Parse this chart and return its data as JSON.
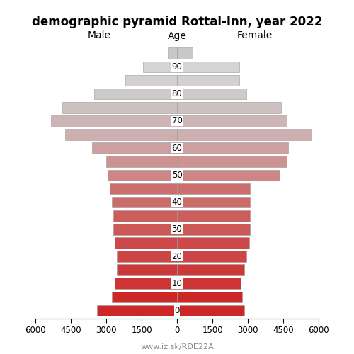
{
  "title": "demographic pyramid Rottal-Inn, year 2022",
  "male_label": "Male",
  "female_label": "Female",
  "age_label": "Age",
  "footnote": "www.iz.sk/RDE22A",
  "age_tick_labels": [
    "0",
    "10",
    "20",
    "30",
    "40",
    "50",
    "60",
    "70",
    "80",
    "90"
  ],
  "male_values": [
    3400,
    2750,
    2650,
    2550,
    2550,
    2650,
    2700,
    2700,
    2750,
    2850,
    2950,
    3000,
    3600,
    4750,
    5350,
    4850,
    3500,
    2200,
    1450,
    380
  ],
  "female_values": [
    2850,
    2750,
    2700,
    2850,
    2950,
    3050,
    3100,
    3100,
    3100,
    3100,
    4350,
    4650,
    4700,
    5700,
    4650,
    4400,
    2950,
    2650,
    2650,
    650
  ],
  "colors": [
    "#cc2222",
    "#cc2222",
    "#cc3333",
    "#cc3333",
    "#cc4444",
    "#cc4444",
    "#cc5555",
    "#cc5555",
    "#cc6666",
    "#cc6666",
    "#cc8080",
    "#cc9090",
    "#cca0a0",
    "#ccb0b0",
    "#ccb0b0",
    "#ccbfbf",
    "#ccbfbf",
    "#d4cccc",
    "#d8d0d0",
    "#c8c8c8"
  ],
  "xlim": 6000,
  "xticks_left": [
    -6000,
    -4500,
    -3000,
    -1500,
    0
  ],
  "xticks_right": [
    0,
    1500,
    3000,
    4500,
    6000
  ],
  "xtick_labels_left": [
    "6000",
    "4500",
    "3000",
    "1500",
    "0"
  ],
  "xtick_labels_right": [
    "0",
    "1500",
    "3000",
    "4500",
    "6000"
  ],
  "background_color": "#ffffff",
  "bar_edge_color": "#999999",
  "bar_linewidth": 0.4,
  "title_fontsize": 12,
  "label_fontsize": 10,
  "tick_fontsize": 8.5
}
